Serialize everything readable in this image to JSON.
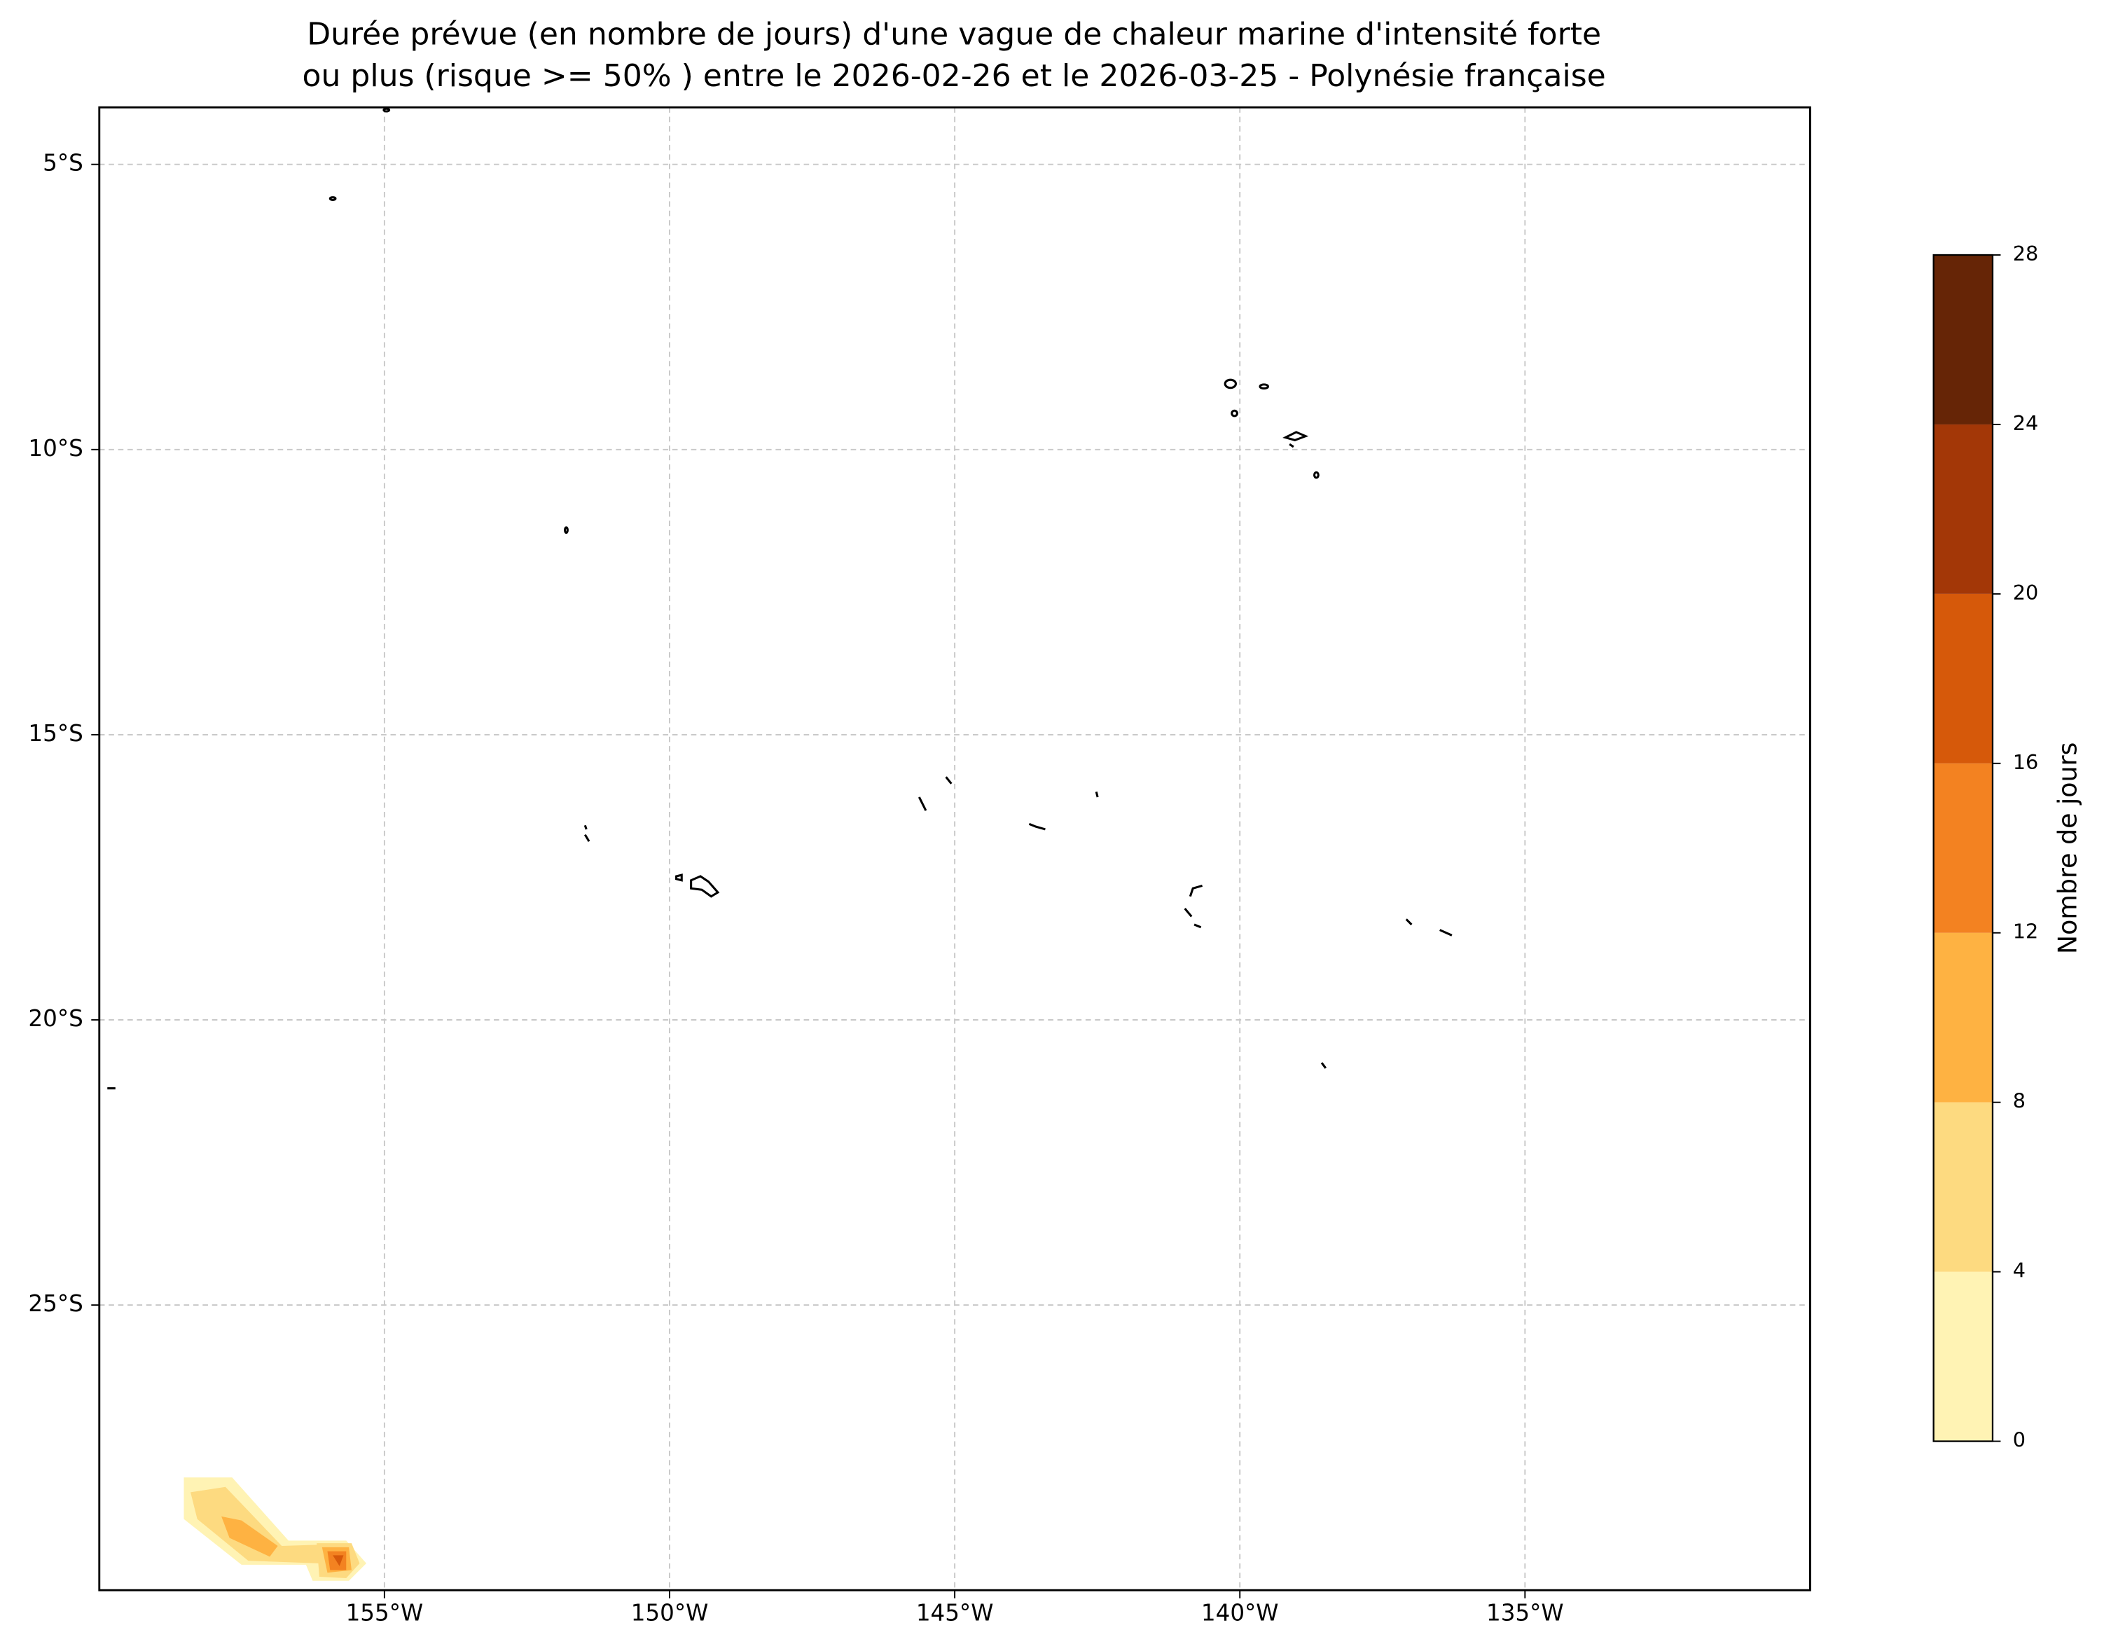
{
  "chart_data": {
    "type": "contourf",
    "title": [
      "Durée prévue (en nombre de jours) d'une vague de chaleur marine d'intensité forte",
      "ou plus (risque >= 50% ) entre le 2026-02-26 et le 2026-03-25 - Polynésie française"
    ],
    "xlim": [
      -160,
      -130
    ],
    "ylim": [
      -30,
      -4
    ],
    "xticks": [
      {
        "value": -155,
        "label": "155°W"
      },
      {
        "value": -150,
        "label": "150°W"
      },
      {
        "value": -145,
        "label": "145°W"
      },
      {
        "value": -140,
        "label": "140°W"
      },
      {
        "value": -135,
        "label": "135°W"
      }
    ],
    "yticks": [
      {
        "value": -5,
        "label": "5°S"
      },
      {
        "value": -10,
        "label": "10°S"
      },
      {
        "value": -15,
        "label": "15°S"
      },
      {
        "value": -20,
        "label": "20°S"
      },
      {
        "value": -25,
        "label": "25°S"
      }
    ],
    "grid": true,
    "colorbar": {
      "label": "Nombre de jours",
      "levels": [
        0,
        4,
        8,
        12,
        16,
        20,
        24,
        28
      ],
      "colors": [
        "#fff3b4",
        "#fdda80",
        "#feb242",
        "#f38221",
        "#d6590a",
        "#a33707",
        "#662506"
      ]
    }
  }
}
